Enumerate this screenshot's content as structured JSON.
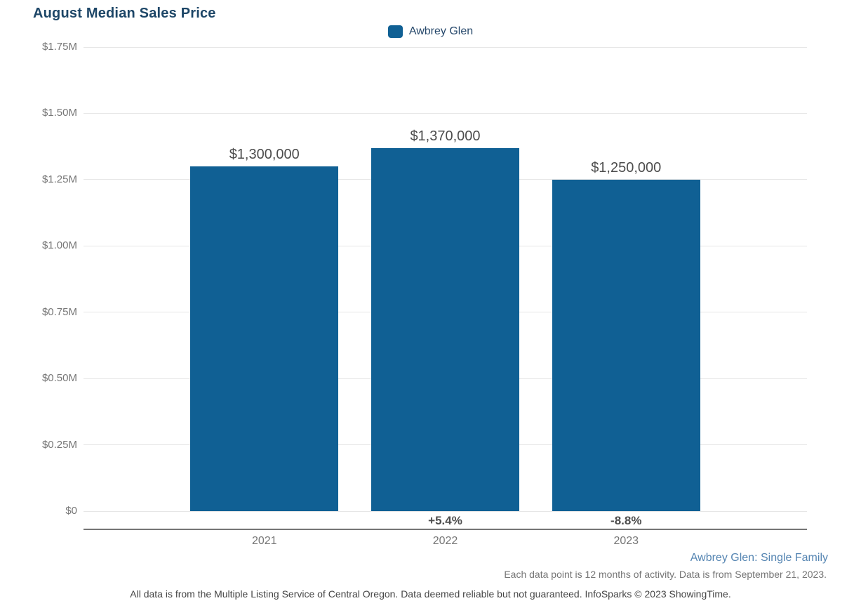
{
  "title": "August Median Sales Price",
  "legend": {
    "label": "Awbrey Glen",
    "color": "#106094"
  },
  "chart_data": {
    "type": "bar",
    "title": "August Median Sales Price",
    "series_name": "Awbrey Glen",
    "categories": [
      "2021",
      "2022",
      "2023"
    ],
    "values": [
      1300000,
      1370000,
      1250000
    ],
    "value_labels": [
      "$1,300,000",
      "$1,370,000",
      "$1,250,000"
    ],
    "pct_change_labels": [
      "",
      "+5.4%",
      "-8.8%"
    ],
    "ylim": [
      0,
      1750000
    ],
    "ytick_interval": 250000,
    "ytick_labels": [
      "$0",
      "$0.25M",
      "$0.50M",
      "$0.75M",
      "$1.00M",
      "$1.25M",
      "$1.50M",
      "$1.75M"
    ],
    "grid": true,
    "legend_position": "top-center",
    "bar_color": "#106094"
  },
  "colors": {
    "bar": "#106094",
    "title_text": "#1d4667",
    "gridline": "#e6e6e6",
    "axis_line": "#757575",
    "tick_text": "#767676",
    "value_text": "#4d4d4d",
    "series_note_text": "#5585b2"
  },
  "footnotes": {
    "series_note": "Awbrey Glen: Single Family",
    "data_note": "Each data point is 12 months of activity. Data is from September 21, 2023.",
    "disclaimer": "All data is from the Multiple Listing Service of Central Oregon. Data deemed reliable but not guaranteed. InfoSparks © 2023 ShowingTime."
  }
}
